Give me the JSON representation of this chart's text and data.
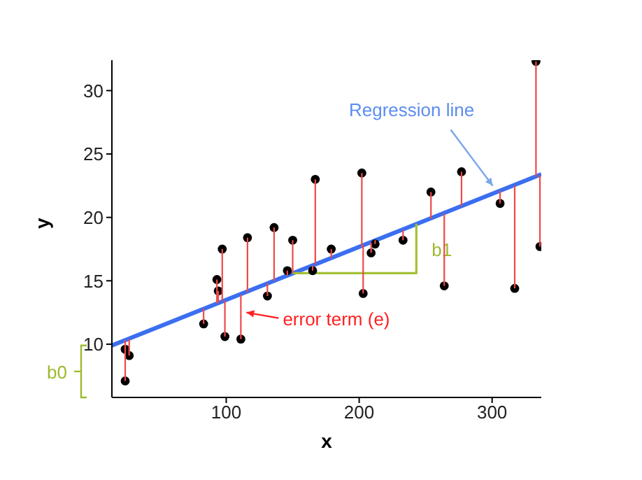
{
  "chart_data": {
    "type": "scatter",
    "xlabel": "x",
    "ylabel": "y",
    "xlim": [
      14,
      337
    ],
    "xticks": [
      100,
      200,
      300
    ],
    "ylim": [
      5.8,
      32.4
    ],
    "yticks": [
      10,
      15,
      20,
      25,
      30
    ],
    "grid": false,
    "legend": false,
    "series": [
      {
        "color": "#000000",
        "marker": "circle",
        "x": [
          24,
          27,
          24,
          83,
          93,
          94,
          97,
          99,
          111,
          116,
          131,
          136,
          146,
          150,
          165,
          167,
          179,
          202,
          203,
          209,
          212,
          233,
          254,
          264,
          277,
          306,
          317,
          333,
          336
        ],
        "values": [
          9.6,
          9.1,
          7.1,
          11.6,
          15.1,
          14.2,
          17.5,
          10.6,
          10.4,
          18.4,
          13.8,
          19.2,
          15.8,
          18.2,
          15.8,
          23.0,
          17.5,
          23.5,
          14.0,
          17.2,
          17.9,
          18.2,
          22.0,
          14.6,
          23.6,
          21.1,
          14.4,
          32.3,
          17.7
        ],
        "errors": [
          [
            9.6,
            10.3
          ],
          [
            9.1,
            10.4
          ],
          [
            7.1,
            10.3
          ],
          [
            11.6,
            12.8
          ],
          [
            13.2,
            15.1
          ],
          [
            13.3,
            14.2
          ],
          [
            13.4,
            17.5
          ],
          [
            10.6,
            13.4
          ],
          [
            10.4,
            13.9
          ],
          [
            14.1,
            18.4
          ],
          [
            13.8,
            14.8
          ],
          [
            15.0,
            19.2
          ],
          [
            15.4,
            15.8
          ],
          [
            15.6,
            18.2
          ],
          [
            15.8,
            16.2
          ],
          [
            16.3,
            23.0
          ],
          [
            16.8,
            17.5
          ],
          [
            17.7,
            23.5
          ],
          [
            14.0,
            17.8
          ],
          [
            17.2,
            18.0
          ],
          [
            17.9,
            18.2
          ],
          [
            18.2,
            19.0
          ],
          [
            19.9,
            22.0
          ],
          [
            14.6,
            20.3
          ],
          [
            20.9,
            23.6
          ],
          [
            21.1,
            22.1
          ],
          [
            14.4,
            22.5
          ],
          [
            23.2,
            32.3
          ],
          [
            17.7,
            23.3
          ]
        ]
      },
      {
        "type": "line",
        "color": "#3b6ff0",
        "marker": "none",
        "x": [
          14,
          337
        ],
        "values": [
          9.9,
          23.4
        ]
      },
      {
        "type": "line",
        "color": "#a2c037",
        "marker": "none",
        "x": [
          150,
          243,
          243
        ],
        "values": [
          15.6,
          15.6,
          19.5
        ]
      }
    ],
    "annotations": [
      "Regression line",
      {
        "text": "error term (e)",
        "x": 111,
        "y": 12.5
      },
      {
        "text": "b1",
        "x": 243,
        "y": 17.5
      },
      "b0"
    ]
  }
}
